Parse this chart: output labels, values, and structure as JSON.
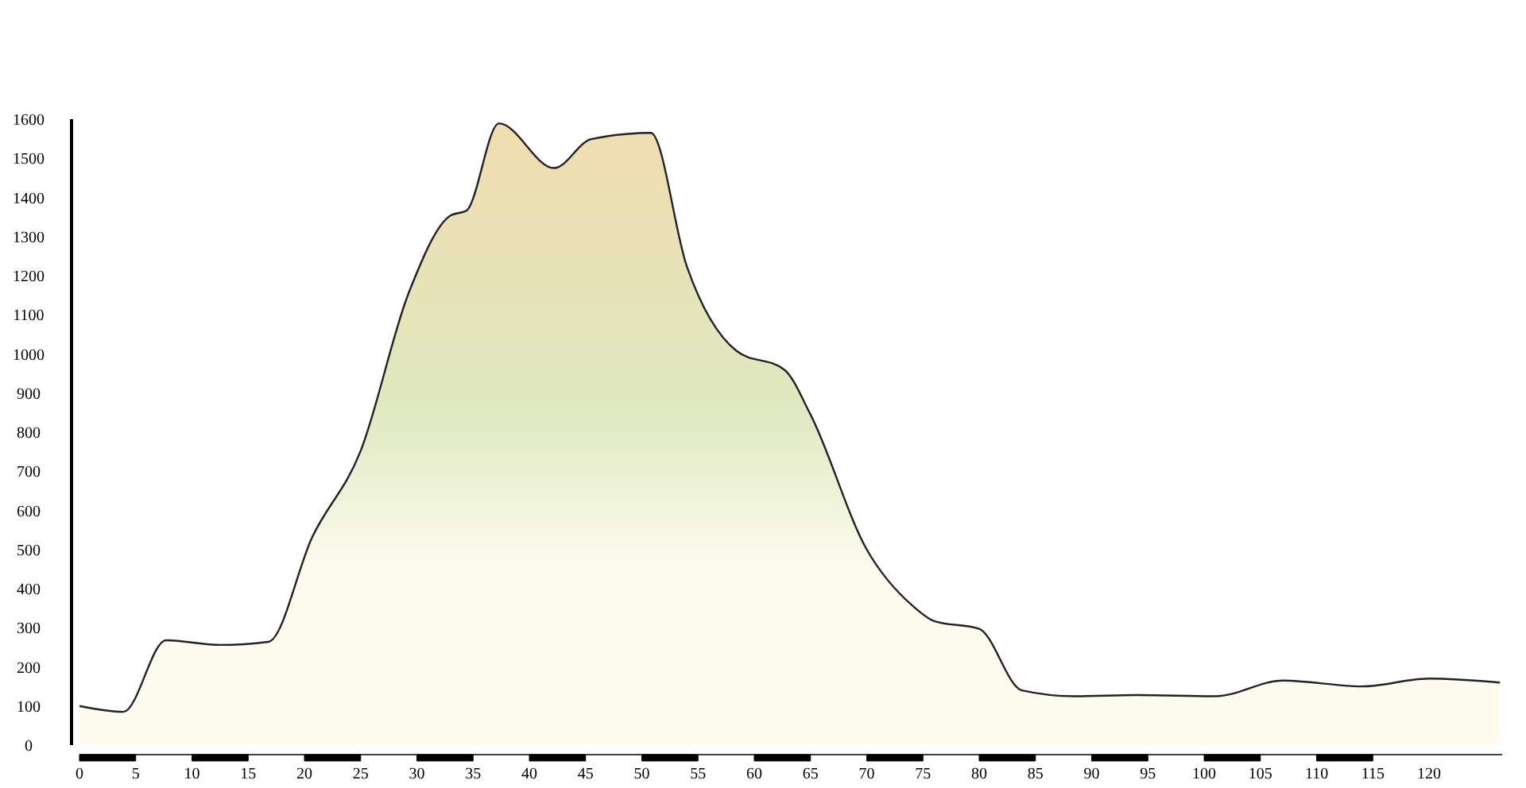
{
  "chart_data": {
    "type": "area",
    "x": [
      0,
      3.9,
      7.7,
      12.5,
      16.8,
      20.7,
      25,
      29.3,
      33,
      34.4,
      37.3,
      42.2,
      45.5,
      50.8,
      54,
      58.4,
      62.7,
      65,
      70,
      74,
      76,
      80,
      83.8,
      88.5,
      94,
      101,
      107,
      114,
      120,
      126.3
    ],
    "series": [
      {
        "color": "#dfe8bf",
        "values": [
          100,
          85,
          268,
          256,
          264,
          532,
          752,
          1158,
          1354,
          1366,
          1589,
          1475,
          1549,
          1565,
          1224,
          1008,
          959,
          845,
          500,
          358,
          317,
          297,
          140,
          125,
          128,
          125,
          165,
          150,
          170,
          160
        ]
      }
    ],
    "xlim": [
      0,
      126.5
    ],
    "ylim": [
      0,
      1600
    ],
    "xticks": [
      0,
      5,
      10,
      15,
      20,
      25,
      30,
      35,
      40,
      45,
      50,
      55,
      60,
      65,
      70,
      75,
      80,
      85,
      90,
      95,
      100,
      105,
      110,
      115,
      120
    ],
    "yticks": [
      0,
      100,
      200,
      300,
      400,
      500,
      600,
      700,
      800,
      900,
      1000,
      1100,
      1200,
      1300,
      1400,
      1500,
      1600
    ],
    "grid": false
  }
}
